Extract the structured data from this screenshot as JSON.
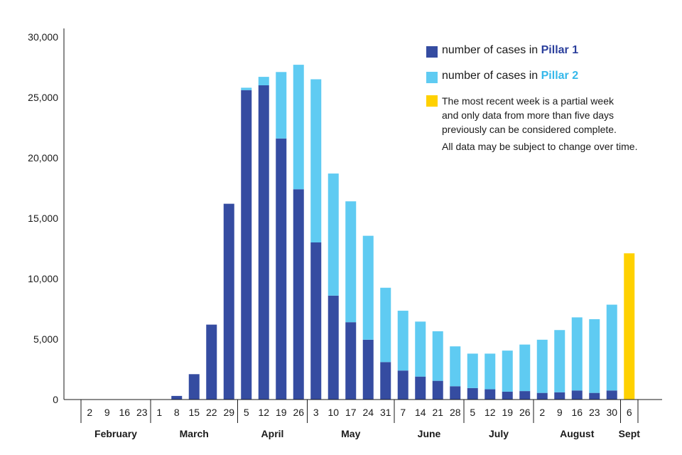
{
  "chart_data": {
    "type": "bar",
    "stacked": true,
    "ylim": [
      0,
      30000
    ],
    "yticks": [
      "0",
      "5,000",
      "10,000",
      "15,000",
      "20,000",
      "25,000",
      "30,000"
    ],
    "ytick_values": [
      0,
      5000,
      10000,
      15000,
      20000,
      25000,
      30000
    ],
    "categories": [
      "2",
      "9",
      "16",
      "23",
      "1",
      "8",
      "15",
      "22",
      "29",
      "5",
      "12",
      "19",
      "26",
      "3",
      "10",
      "17",
      "24",
      "31",
      "7",
      "14",
      "21",
      "28",
      "5",
      "12",
      "19",
      "26",
      "2",
      "9",
      "16",
      "23",
      "30",
      "6"
    ],
    "months": [
      {
        "label": "February",
        "count": 4
      },
      {
        "label": "March",
        "count": 5
      },
      {
        "label": "April",
        "count": 4
      },
      {
        "label": "May",
        "count": 5
      },
      {
        "label": "June",
        "count": 4
      },
      {
        "label": "July",
        "count": 4
      },
      {
        "label": "August",
        "count": 5
      },
      {
        "label": "Sept",
        "count": 1
      }
    ],
    "series": [
      {
        "name": "Pillar 1",
        "color": "#354ca1",
        "values": [
          0,
          0,
          0,
          0,
          0,
          300,
          2100,
          6200,
          16200,
          25600,
          26000,
          21600,
          17400,
          13000,
          8600,
          6400,
          4950,
          3100,
          2400,
          1900,
          1550,
          1100,
          950,
          850,
          650,
          700,
          550,
          600,
          750,
          550,
          750,
          0
        ]
      },
      {
        "name": "Pillar 2",
        "color": "#5fcbf2",
        "values": [
          0,
          0,
          0,
          0,
          0,
          0,
          0,
          0,
          0,
          200,
          700,
          5500,
          10300,
          13500,
          10100,
          10000,
          8600,
          6150,
          4950,
          4550,
          4100,
          3300,
          2850,
          2950,
          3400,
          3850,
          4400,
          5150,
          6050,
          6100,
          7100,
          0
        ]
      },
      {
        "name": "Partial week",
        "color": "#ffd100",
        "values": [
          0,
          0,
          0,
          0,
          0,
          0,
          0,
          0,
          0,
          0,
          0,
          0,
          0,
          0,
          0,
          0,
          0,
          0,
          0,
          0,
          0,
          0,
          0,
          0,
          0,
          0,
          0,
          0,
          0,
          0,
          0,
          12100
        ]
      }
    ]
  },
  "legend": {
    "pillar1_prefix": "number of cases in ",
    "pillar1_name": "Pillar 1",
    "pillar2_prefix": "number of cases in ",
    "pillar2_name": "Pillar 2",
    "note_line1": "The most recent week is a partial week",
    "note_line2": "and only data from more than five days",
    "note_line3": "previously can be considered complete.",
    "note2": "All data may be subject to change over time."
  },
  "colors": {
    "pillar1": "#354ca1",
    "pillar2": "#5fcbf2",
    "partial": "#ffd100"
  }
}
